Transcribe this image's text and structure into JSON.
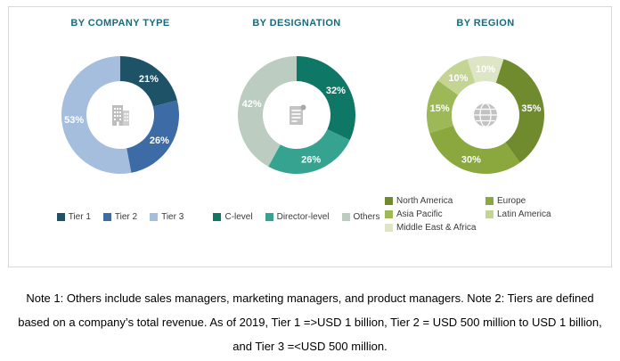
{
  "notes": {
    "text": "Note 1: Others include sales managers, marketing managers, and product managers. Note 2: Tiers are defined based on a company’s total revenue. As of 2019, Tier 1 =>USD 1 billion, Tier 2 = USD 500 million to USD 1 billion, and Tier 3 =<USD 500 million."
  },
  "icons": {
    "chart1": "building-icon",
    "chart2": "document-icon",
    "chart3": "globe-icon"
  },
  "chart_data": [
    {
      "type": "pie",
      "donut": true,
      "title": "BY COMPANY TYPE",
      "start_angle": 0,
      "legend_position": "bottom",
      "center_icon": "building-icon",
      "slices": [
        {
          "label": "Tier 1",
          "value": 21,
          "color": "#1e5266"
        },
        {
          "label": "Tier 2",
          "value": 26,
          "color": "#3d6ba5"
        },
        {
          "label": "Tier 3",
          "value": 53,
          "color": "#a6bede"
        }
      ]
    },
    {
      "type": "pie",
      "donut": true,
      "title": "BY DESIGNATION",
      "start_angle": 0,
      "legend_position": "bottom",
      "center_icon": "document-icon",
      "slices": [
        {
          "label": "C-level",
          "value": 32,
          "color": "#0e7766"
        },
        {
          "label": "Director-level",
          "value": 26,
          "color": "#36a390"
        },
        {
          "label": "Others",
          "value": 42,
          "color": "#bcccc1"
        }
      ]
    },
    {
      "type": "pie",
      "donut": true,
      "title": "BY REGION",
      "start_angle": 18,
      "legend_position": "bottom",
      "center_icon": "globe-icon",
      "slices": [
        {
          "label": "North America",
          "value": 35,
          "color": "#6f8b2d"
        },
        {
          "label": "Europe",
          "value": 30,
          "color": "#8aa83e"
        },
        {
          "label": "Asia Pacific",
          "value": 15,
          "color": "#9db957"
        },
        {
          "label": "Latin America",
          "value": 10,
          "color": "#c4d593"
        },
        {
          "label": "Middle East & Africa",
          "value": 10,
          "color": "#dde6c4"
        }
      ]
    }
  ]
}
